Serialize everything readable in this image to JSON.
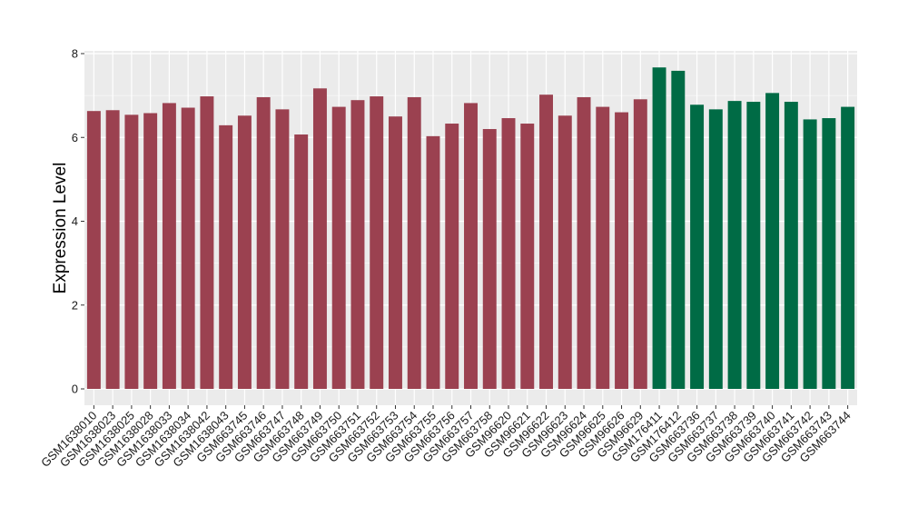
{
  "chart_data": {
    "type": "bar",
    "title": "",
    "xlabel": "",
    "ylabel": "Expression Level",
    "ylim": [
      0,
      8
    ],
    "yticks": [
      0,
      2,
      4,
      6,
      8
    ],
    "grid": true,
    "legend": "none",
    "colors": {
      "group1": "#9b4150",
      "group2": "#006b45",
      "panel": "#ebebeb",
      "gridline": "#ffffff"
    },
    "categories": [
      "GSM1638010",
      "GSM1638023",
      "GSM1638025",
      "GSM1638028",
      "GSM1638033",
      "GSM1638034",
      "GSM1638042",
      "GSM1638043",
      "GSM663745",
      "GSM663746",
      "GSM663747",
      "GSM663748",
      "GSM663749",
      "GSM663750",
      "GSM663751",
      "GSM663752",
      "GSM663753",
      "GSM663754",
      "GSM663755",
      "GSM663756",
      "GSM663757",
      "GSM663758",
      "GSM96620",
      "GSM96621",
      "GSM96622",
      "GSM96623",
      "GSM96624",
      "GSM96625",
      "GSM96626",
      "GSM96629",
      "GSM176411",
      "GSM176412",
      "GSM663736",
      "GSM663737",
      "GSM663738",
      "GSM663739",
      "GSM663740",
      "GSM663741",
      "GSM663742",
      "GSM663743",
      "GSM663744"
    ],
    "values": [
      6.63,
      6.65,
      6.54,
      6.58,
      6.82,
      6.71,
      6.98,
      6.29,
      6.52,
      6.96,
      6.67,
      6.07,
      7.17,
      6.73,
      6.89,
      6.98,
      6.5,
      6.96,
      6.03,
      6.33,
      6.82,
      6.2,
      6.46,
      6.33,
      7.02,
      6.52,
      6.96,
      6.73,
      6.6,
      6.91,
      7.67,
      7.59,
      6.78,
      6.67,
      6.87,
      6.85,
      7.06,
      6.85,
      6.43,
      6.46,
      6.73
    ],
    "groups": [
      1,
      1,
      1,
      1,
      1,
      1,
      1,
      1,
      1,
      1,
      1,
      1,
      1,
      1,
      1,
      1,
      1,
      1,
      1,
      1,
      1,
      1,
      1,
      1,
      1,
      1,
      1,
      1,
      1,
      1,
      2,
      2,
      2,
      2,
      2,
      2,
      2,
      2,
      2,
      2,
      2
    ]
  }
}
